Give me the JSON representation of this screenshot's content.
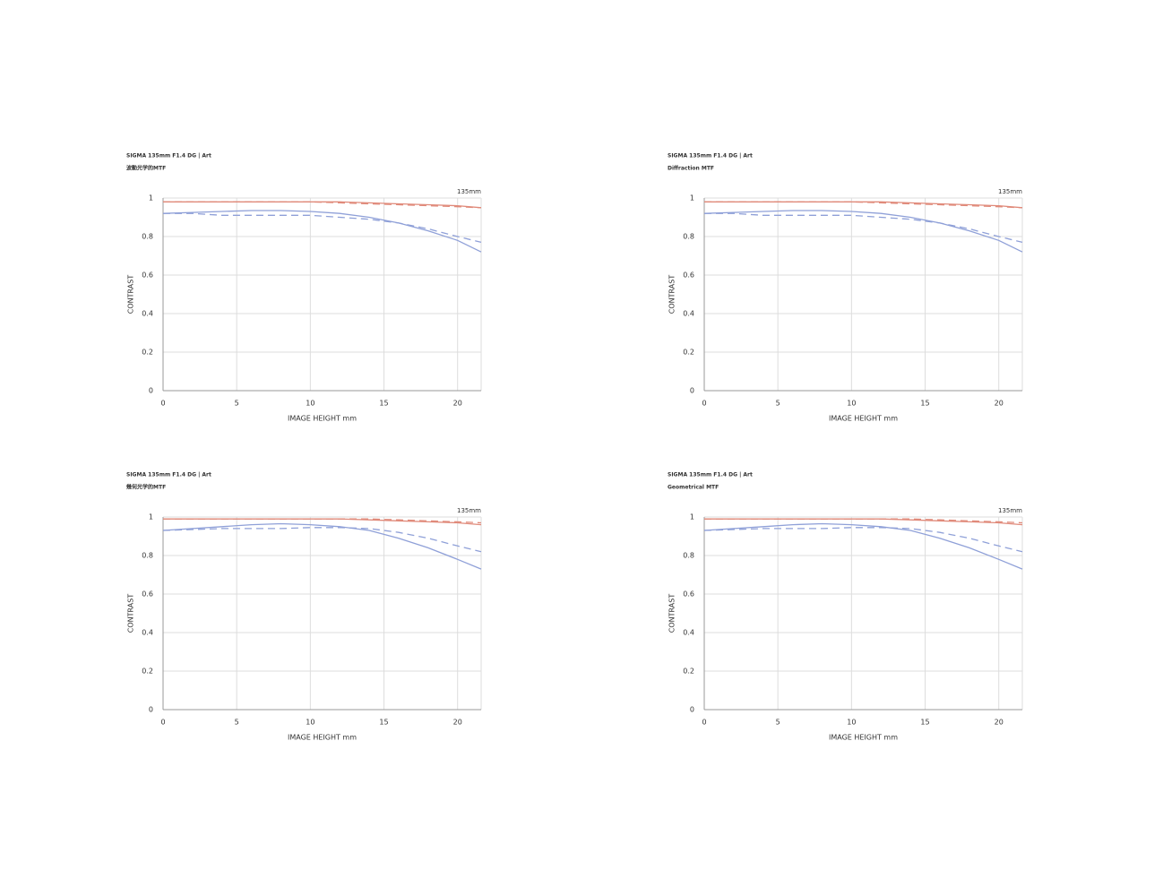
{
  "chart_data": [
    {
      "type": "line",
      "title": "SIGMA 135mm F1.4 DG | Art",
      "subtitle": "波動光学的MTF",
      "annotation": "135mm",
      "xlabel": "IMAGE HEIGHT  mm",
      "ylabel": "CONTRAST",
      "x": [
        0,
        2,
        4,
        6,
        8,
        10,
        12,
        14,
        16,
        18,
        20,
        21.6
      ],
      "xlim": [
        0,
        21.6
      ],
      "xticks": [
        0,
        5,
        10,
        15,
        20
      ],
      "ylim": [
        0,
        1
      ],
      "yticks": [
        0,
        0.2,
        0.4,
        0.6,
        0.8,
        1
      ],
      "grid": true,
      "series": [
        {
          "color": "#e08a7a",
          "dash": false,
          "values": [
            0.98,
            0.98,
            0.98,
            0.98,
            0.98,
            0.98,
            0.98,
            0.975,
            0.97,
            0.965,
            0.96,
            0.95
          ]
        },
        {
          "color": "#e08a7a",
          "dash": true,
          "values": [
            0.98,
            0.98,
            0.98,
            0.98,
            0.98,
            0.98,
            0.975,
            0.97,
            0.965,
            0.96,
            0.955,
            0.95
          ]
        },
        {
          "color": "#8fa0d8",
          "dash": false,
          "values": [
            0.92,
            0.925,
            0.93,
            0.935,
            0.935,
            0.93,
            0.92,
            0.9,
            0.87,
            0.83,
            0.78,
            0.72
          ]
        },
        {
          "color": "#8fa0d8",
          "dash": true,
          "values": [
            0.92,
            0.92,
            0.91,
            0.91,
            0.91,
            0.91,
            0.9,
            0.89,
            0.87,
            0.84,
            0.8,
            0.77
          ]
        }
      ]
    },
    {
      "type": "line",
      "title": "SIGMA 135mm F1.4 DG | Art",
      "subtitle": "Diffraction MTF",
      "annotation": "135mm",
      "xlabel": "IMAGE HEIGHT  mm",
      "ylabel": "CONTRAST",
      "x": [
        0,
        2,
        4,
        6,
        8,
        10,
        12,
        14,
        16,
        18,
        20,
        21.6
      ],
      "xlim": [
        0,
        21.6
      ],
      "xticks": [
        0,
        5,
        10,
        15,
        20
      ],
      "ylim": [
        0,
        1
      ],
      "yticks": [
        0,
        0.2,
        0.4,
        0.6,
        0.8,
        1
      ],
      "grid": true,
      "series": [
        {
          "color": "#e08a7a",
          "dash": false,
          "values": [
            0.98,
            0.98,
            0.98,
            0.98,
            0.98,
            0.98,
            0.98,
            0.975,
            0.97,
            0.965,
            0.96,
            0.95
          ]
        },
        {
          "color": "#e08a7a",
          "dash": true,
          "values": [
            0.98,
            0.98,
            0.98,
            0.98,
            0.98,
            0.98,
            0.975,
            0.97,
            0.965,
            0.96,
            0.955,
            0.95
          ]
        },
        {
          "color": "#8fa0d8",
          "dash": false,
          "values": [
            0.92,
            0.925,
            0.93,
            0.935,
            0.935,
            0.93,
            0.92,
            0.9,
            0.87,
            0.83,
            0.78,
            0.72
          ]
        },
        {
          "color": "#8fa0d8",
          "dash": true,
          "values": [
            0.92,
            0.92,
            0.91,
            0.91,
            0.91,
            0.91,
            0.9,
            0.89,
            0.87,
            0.84,
            0.8,
            0.77
          ]
        }
      ]
    },
    {
      "type": "line",
      "title": "SIGMA 135mm F1.4 DG | Art",
      "subtitle": "幾何光学的MTF",
      "annotation": "135mm",
      "xlabel": "IMAGE HEIGHT  mm",
      "ylabel": "CONTRAST",
      "x": [
        0,
        2,
        4,
        6,
        8,
        10,
        12,
        14,
        16,
        18,
        20,
        21.6
      ],
      "xlim": [
        0,
        21.6
      ],
      "xticks": [
        0,
        5,
        10,
        15,
        20
      ],
      "ylim": [
        0,
        1
      ],
      "yticks": [
        0,
        0.2,
        0.4,
        0.6,
        0.8,
        1
      ],
      "grid": true,
      "series": [
        {
          "color": "#e08a7a",
          "dash": false,
          "values": [
            0.99,
            0.99,
            0.99,
            0.99,
            0.99,
            0.99,
            0.99,
            0.985,
            0.98,
            0.975,
            0.97,
            0.96
          ]
        },
        {
          "color": "#e08a7a",
          "dash": true,
          "values": [
            0.99,
            0.99,
            0.99,
            0.99,
            0.99,
            0.99,
            0.99,
            0.99,
            0.985,
            0.98,
            0.975,
            0.97
          ]
        },
        {
          "color": "#8fa0d8",
          "dash": false,
          "values": [
            0.93,
            0.94,
            0.95,
            0.96,
            0.965,
            0.96,
            0.95,
            0.93,
            0.89,
            0.84,
            0.78,
            0.73
          ]
        },
        {
          "color": "#8fa0d8",
          "dash": true,
          "values": [
            0.93,
            0.935,
            0.94,
            0.94,
            0.94,
            0.945,
            0.945,
            0.94,
            0.92,
            0.89,
            0.85,
            0.82
          ]
        }
      ]
    },
    {
      "type": "line",
      "title": "SIGMA 135mm F1.4 DG | Art",
      "subtitle": "Geometrical MTF",
      "annotation": "135mm",
      "xlabel": "IMAGE HEIGHT  mm",
      "ylabel": "CONTRAST",
      "x": [
        0,
        2,
        4,
        6,
        8,
        10,
        12,
        14,
        16,
        18,
        20,
        21.6
      ],
      "xlim": [
        0,
        21.6
      ],
      "xticks": [
        0,
        5,
        10,
        15,
        20
      ],
      "ylim": [
        0,
        1
      ],
      "yticks": [
        0,
        0.2,
        0.4,
        0.6,
        0.8,
        1
      ],
      "grid": true,
      "series": [
        {
          "color": "#e08a7a",
          "dash": false,
          "values": [
            0.99,
            0.99,
            0.99,
            0.99,
            0.99,
            0.99,
            0.99,
            0.985,
            0.98,
            0.975,
            0.97,
            0.96
          ]
        },
        {
          "color": "#e08a7a",
          "dash": true,
          "values": [
            0.99,
            0.99,
            0.99,
            0.99,
            0.99,
            0.99,
            0.99,
            0.99,
            0.985,
            0.98,
            0.975,
            0.97
          ]
        },
        {
          "color": "#8fa0d8",
          "dash": false,
          "values": [
            0.93,
            0.94,
            0.95,
            0.96,
            0.965,
            0.96,
            0.95,
            0.93,
            0.89,
            0.84,
            0.78,
            0.73
          ]
        },
        {
          "color": "#8fa0d8",
          "dash": true,
          "values": [
            0.93,
            0.935,
            0.94,
            0.94,
            0.94,
            0.945,
            0.945,
            0.94,
            0.92,
            0.89,
            0.85,
            0.82
          ]
        }
      ]
    }
  ]
}
